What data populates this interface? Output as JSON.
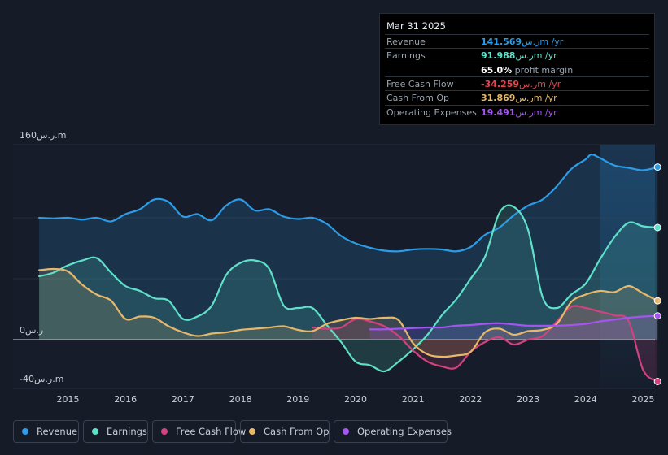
{
  "tooltip": {
    "date": "Mar 31 2025",
    "rows": [
      {
        "label": "Revenue",
        "value": "141.569",
        "unit_currency": "ر.س",
        "unit_suffix": "m /yr",
        "color": "#2e9be6"
      },
      {
        "label": "Earnings",
        "value": "91.988",
        "unit_currency": "ر.س",
        "unit_suffix": "m /yr",
        "color": "#5fe0c9"
      },
      {
        "label": "",
        "value": "65.0%",
        "unit_currency": "",
        "unit_suffix": "profit margin",
        "color": "#ffffff"
      },
      {
        "label": "Free Cash Flow",
        "value": "-34.259",
        "unit_currency": "ر.س",
        "unit_suffix": "m /yr",
        "color": "#e0464f"
      },
      {
        "label": "Cash From Op",
        "value": "31.869",
        "unit_currency": "ر.س",
        "unit_suffix": "m /yr",
        "color": "#e8b86a"
      },
      {
        "label": "Operating Expenses",
        "value": "19.491",
        "unit_currency": "ر.س",
        "unit_suffix": "m /yr",
        "color": "#a455f0"
      }
    ]
  },
  "legend": {
    "items": [
      {
        "label": "Revenue",
        "color": "#2e9be6"
      },
      {
        "label": "Earnings",
        "color": "#5fe0c9"
      },
      {
        "label": "Free Cash Flow",
        "color": "#d2427f"
      },
      {
        "label": "Cash From Op",
        "color": "#e8b86a"
      },
      {
        "label": "Operating Expenses",
        "color": "#a455f0"
      }
    ]
  },
  "chart_data": {
    "type": "area",
    "title": "",
    "xlabel": "",
    "ylabel": "",
    "ylim": [
      -40,
      160
    ],
    "y_tick_labels": [
      {
        "value": 160,
        "label": "160ر.س.m"
      },
      {
        "value": 0,
        "label": "0ر.س"
      },
      {
        "value": -40,
        "label": "-40ر.س.m"
      }
    ],
    "x_tick_labels": [
      "2015",
      "2016",
      "2017",
      "2018",
      "2019",
      "2020",
      "2021",
      "2022",
      "2023",
      "2024",
      "2025"
    ],
    "x_tick_values": [
      2015,
      2016,
      2017,
      2018,
      2019,
      2020,
      2021,
      2022,
      2023,
      2024,
      2025
    ],
    "xlim": [
      2013.9,
      2025.25
    ],
    "highlight_from": 2024.25,
    "series": [
      {
        "name": "Revenue",
        "color": "#2e9be6",
        "points": [
          [
            2014.5,
            100
          ],
          [
            2014.75,
            99.5
          ],
          [
            2015.0,
            100
          ],
          [
            2015.25,
            98.5
          ],
          [
            2015.5,
            100
          ],
          [
            2015.75,
            97
          ],
          [
            2016.0,
            103
          ],
          [
            2016.25,
            107
          ],
          [
            2016.5,
            115
          ],
          [
            2016.75,
            113
          ],
          [
            2017.0,
            101
          ],
          [
            2017.25,
            103
          ],
          [
            2017.5,
            98
          ],
          [
            2017.75,
            110
          ],
          [
            2018.0,
            115
          ],
          [
            2018.25,
            106
          ],
          [
            2018.5,
            107
          ],
          [
            2018.75,
            101
          ],
          [
            2019.0,
            99
          ],
          [
            2019.25,
            100
          ],
          [
            2019.5,
            95
          ],
          [
            2019.75,
            85
          ],
          [
            2020.0,
            79
          ],
          [
            2020.25,
            75.5
          ],
          [
            2020.5,
            73
          ],
          [
            2020.75,
            72.5
          ],
          [
            2021.0,
            74
          ],
          [
            2021.25,
            74.5
          ],
          [
            2021.5,
            74
          ],
          [
            2021.75,
            72.5
          ],
          [
            2022.0,
            76
          ],
          [
            2022.25,
            86
          ],
          [
            2022.5,
            92
          ],
          [
            2022.75,
            102
          ],
          [
            2023.0,
            110
          ],
          [
            2023.25,
            115
          ],
          [
            2023.5,
            126
          ],
          [
            2023.75,
            140
          ],
          [
            2024.0,
            148
          ],
          [
            2024.1,
            152
          ],
          [
            2024.25,
            149
          ],
          [
            2024.5,
            143
          ],
          [
            2024.75,
            141
          ],
          [
            2025.0,
            139
          ],
          [
            2025.25,
            141.6
          ]
        ]
      },
      {
        "name": "Earnings",
        "color": "#5fe0c9",
        "points": [
          [
            2014.5,
            52
          ],
          [
            2014.75,
            55
          ],
          [
            2015.0,
            61
          ],
          [
            2015.25,
            65
          ],
          [
            2015.5,
            67
          ],
          [
            2015.75,
            55
          ],
          [
            2016.0,
            44
          ],
          [
            2016.25,
            40
          ],
          [
            2016.5,
            34
          ],
          [
            2016.75,
            32
          ],
          [
            2017.0,
            17
          ],
          [
            2017.25,
            19
          ],
          [
            2017.5,
            28
          ],
          [
            2017.75,
            53
          ],
          [
            2018.0,
            63
          ],
          [
            2018.25,
            65
          ],
          [
            2018.5,
            58
          ],
          [
            2018.75,
            28
          ],
          [
            2019.0,
            26
          ],
          [
            2019.25,
            26
          ],
          [
            2019.5,
            12
          ],
          [
            2019.75,
            -2
          ],
          [
            2020.0,
            -18
          ],
          [
            2020.25,
            -21
          ],
          [
            2020.5,
            -26
          ],
          [
            2020.75,
            -18
          ],
          [
            2021.0,
            -8
          ],
          [
            2021.25,
            4
          ],
          [
            2021.5,
            20
          ],
          [
            2021.75,
            33
          ],
          [
            2022.0,
            50
          ],
          [
            2022.25,
            68
          ],
          [
            2022.5,
            104
          ],
          [
            2022.75,
            109
          ],
          [
            2023.0,
            90
          ],
          [
            2023.25,
            35
          ],
          [
            2023.5,
            26
          ],
          [
            2023.75,
            37
          ],
          [
            2024.0,
            46
          ],
          [
            2024.25,
            66
          ],
          [
            2024.5,
            84
          ],
          [
            2024.75,
            96
          ],
          [
            2025.0,
            93
          ],
          [
            2025.25,
            92
          ]
        ]
      },
      {
        "name": "Free Cash Flow",
        "color": "#d2427f",
        "points": [
          [
            2019.25,
            10
          ],
          [
            2019.5,
            9
          ],
          [
            2019.75,
            10
          ],
          [
            2020.0,
            17
          ],
          [
            2020.25,
            15
          ],
          [
            2020.5,
            11
          ],
          [
            2020.75,
            3
          ],
          [
            2021.0,
            -9
          ],
          [
            2021.25,
            -18
          ],
          [
            2021.5,
            -22
          ],
          [
            2021.75,
            -23
          ],
          [
            2022.0,
            -10
          ],
          [
            2022.25,
            -2
          ],
          [
            2022.5,
            2
          ],
          [
            2022.75,
            -4
          ],
          [
            2023.0,
            0
          ],
          [
            2023.25,
            3
          ],
          [
            2023.5,
            15
          ],
          [
            2023.75,
            27
          ],
          [
            2024.0,
            26
          ],
          [
            2024.25,
            23
          ],
          [
            2024.5,
            20
          ],
          [
            2024.75,
            15
          ],
          [
            2025.0,
            -25
          ],
          [
            2025.25,
            -34.3
          ]
        ]
      },
      {
        "name": "Cash From Op",
        "color": "#e8b86a",
        "points": [
          [
            2014.5,
            57
          ],
          [
            2014.75,
            58
          ],
          [
            2015.0,
            56
          ],
          [
            2015.25,
            45
          ],
          [
            2015.5,
            37
          ],
          [
            2015.75,
            32
          ],
          [
            2016.0,
            17
          ],
          [
            2016.25,
            19
          ],
          [
            2016.5,
            18
          ],
          [
            2016.75,
            11
          ],
          [
            2017.0,
            6
          ],
          [
            2017.25,
            3
          ],
          [
            2017.5,
            5
          ],
          [
            2017.75,
            6
          ],
          [
            2018.0,
            8
          ],
          [
            2018.25,
            9
          ],
          [
            2018.5,
            10
          ],
          [
            2018.75,
            11
          ],
          [
            2019.0,
            8
          ],
          [
            2019.25,
            7
          ],
          [
            2019.5,
            13
          ],
          [
            2019.75,
            16
          ],
          [
            2020.0,
            18
          ],
          [
            2020.25,
            17
          ],
          [
            2020.5,
            18
          ],
          [
            2020.75,
            16
          ],
          [
            2021.0,
            -3
          ],
          [
            2021.25,
            -12
          ],
          [
            2021.5,
            -14
          ],
          [
            2021.75,
            -13
          ],
          [
            2022.0,
            -10
          ],
          [
            2022.25,
            6
          ],
          [
            2022.5,
            9
          ],
          [
            2022.75,
            4
          ],
          [
            2023.0,
            7
          ],
          [
            2023.25,
            8
          ],
          [
            2023.5,
            13
          ],
          [
            2023.75,
            31
          ],
          [
            2024.0,
            37
          ],
          [
            2024.25,
            40
          ],
          [
            2024.5,
            39
          ],
          [
            2024.75,
            44
          ],
          [
            2025.0,
            38
          ],
          [
            2025.25,
            31.9
          ]
        ]
      },
      {
        "name": "Operating Expenses",
        "color": "#a455f0",
        "points": [
          [
            2020.25,
            8.5
          ],
          [
            2020.5,
            8.5
          ],
          [
            2020.75,
            9
          ],
          [
            2021.0,
            9.5
          ],
          [
            2021.25,
            10
          ],
          [
            2021.5,
            10
          ],
          [
            2021.75,
            11.5
          ],
          [
            2022.0,
            12
          ],
          [
            2022.25,
            13
          ],
          [
            2022.5,
            13.5
          ],
          [
            2022.75,
            12.5
          ],
          [
            2023.0,
            11.5
          ],
          [
            2023.25,
            11.5
          ],
          [
            2023.5,
            11.5
          ],
          [
            2023.75,
            12
          ],
          [
            2024.0,
            13
          ],
          [
            2024.25,
            15
          ],
          [
            2024.5,
            16.5
          ],
          [
            2024.75,
            18
          ],
          [
            2025.0,
            19
          ],
          [
            2025.25,
            19.5
          ]
        ]
      }
    ]
  }
}
